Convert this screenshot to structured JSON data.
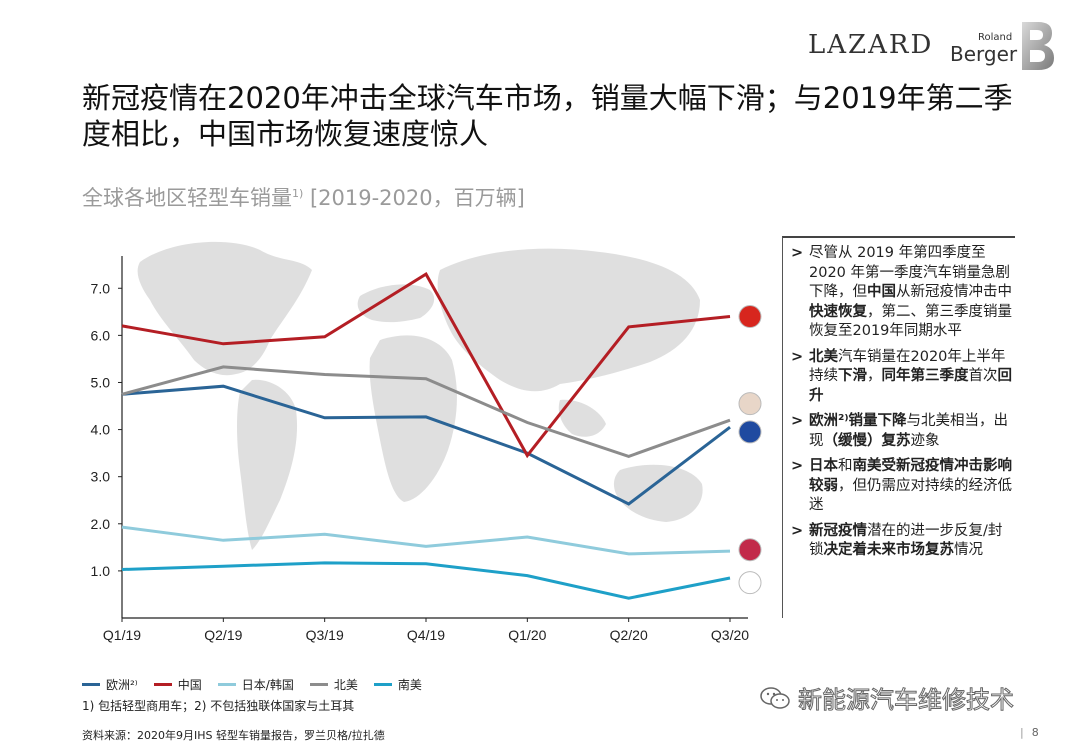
{
  "header": {
    "lazard_logo": "LAZARD",
    "rb_logo_top": "Roland",
    "rb_logo_bottom": "Berger"
  },
  "title": "新冠疫情在2020年冲击全球汽车市场，销量大幅下滑；与2019年第二季度相比，中国市场恢复速度惊人",
  "subtitle": {
    "text": "全球各地区轻型车销量",
    "sup": "1)",
    "unit": " [2019-2020，百万辆]"
  },
  "chart_data": {
    "type": "line",
    "title": "全球各地区轻型车销量1) [2019-2020，百万辆]",
    "categories": [
      "Q1/19",
      "Q2/19",
      "Q3/19",
      "Q4/19",
      "Q1/20",
      "Q2/20",
      "Q3/20"
    ],
    "y_ticks": [
      "1.0",
      "2.0",
      "3.0",
      "4.0",
      "5.0",
      "6.0",
      "7.0"
    ],
    "ylim": [
      0.0,
      7.6
    ],
    "series": [
      {
        "name": "欧洲²⁾",
        "color": "#2a6496",
        "values": [
          4.75,
          4.92,
          4.25,
          4.27,
          3.5,
          2.42,
          4.05
        ]
      },
      {
        "name": "中国",
        "color": "#b41e24",
        "values": [
          6.2,
          5.82,
          5.97,
          7.3,
          3.45,
          6.18,
          6.4
        ]
      },
      {
        "name": "日本/韩国",
        "color": "#8fcbdc",
        "values": [
          1.93,
          1.65,
          1.78,
          1.52,
          1.72,
          1.36,
          1.42
        ]
      },
      {
        "name": "北美",
        "color": "#8c8c8c",
        "values": [
          4.75,
          5.33,
          5.17,
          5.08,
          4.15,
          3.43,
          4.2
        ]
      },
      {
        "name": "南美",
        "color": "#1ea0c8",
        "values": [
          1.03,
          1.1,
          1.17,
          1.15,
          0.9,
          0.42,
          0.85
        ]
      }
    ]
  },
  "sidebar": {
    "bullets": [
      {
        "mark": ">",
        "parts": [
          {
            "t": "尽管从 2019 年第四季度至2020 年第一季度汽车销量急剧下降，但",
            "b": false
          },
          {
            "t": "中国",
            "b": true
          },
          {
            "t": "从新冠疫情冲击中",
            "b": false
          },
          {
            "t": "快速恢复",
            "b": true
          },
          {
            "t": "，第二、第三季度销量恢复至2019年同期水平",
            "b": false
          }
        ]
      },
      {
        "mark": ">",
        "parts": [
          {
            "t": "北美",
            "b": true
          },
          {
            "t": "汽车销量在2020年上半年持续",
            "b": false
          },
          {
            "t": "下滑",
            "b": true
          },
          {
            "t": "，",
            "b": false
          },
          {
            "t": "同年第三季度",
            "b": true
          },
          {
            "t": "首次",
            "b": false
          },
          {
            "t": "回升",
            "b": true
          }
        ]
      },
      {
        "mark": ">",
        "parts": [
          {
            "t": "欧洲²⁾销量下降",
            "b": true
          },
          {
            "t": "与北美相当，出现",
            "b": false
          },
          {
            "t": "（缓慢）复苏",
            "b": true
          },
          {
            "t": "迹象",
            "b": false
          }
        ]
      },
      {
        "mark": ">",
        "parts": [
          {
            "t": "日本",
            "b": true
          },
          {
            "t": "和",
            "b": false
          },
          {
            "t": "南美受新冠疫情冲击影响较弱",
            "b": true
          },
          {
            "t": "，但仍需应对持续的经济低迷",
            "b": false
          }
        ]
      },
      {
        "mark": ">",
        "parts": [
          {
            "t": "新冠疫情",
            "b": true
          },
          {
            "t": "潜在的进一步反复/封锁",
            "b": false
          },
          {
            "t": "决定着未来市场复苏",
            "b": true
          },
          {
            "t": "情况",
            "b": false
          }
        ]
      }
    ]
  },
  "legend": {
    "items": [
      {
        "label": "欧洲²⁾",
        "color": "#2a6496"
      },
      {
        "label": "中国",
        "color": "#b41e24"
      },
      {
        "label": "日本/韩国",
        "color": "#8fcbdc"
      },
      {
        "label": "北美",
        "color": "#8c8c8c"
      },
      {
        "label": "南美",
        "color": "#1ea0c8"
      }
    ]
  },
  "footnote": "1) 包括轻型商用车；2) 不包括独联体国家与土耳其",
  "source": "资料来源：2020年9月IHS 轻型车销量报告，罗兰贝格/拉扎德",
  "watermark": "新能源汽车维修技术",
  "page_number": "8"
}
